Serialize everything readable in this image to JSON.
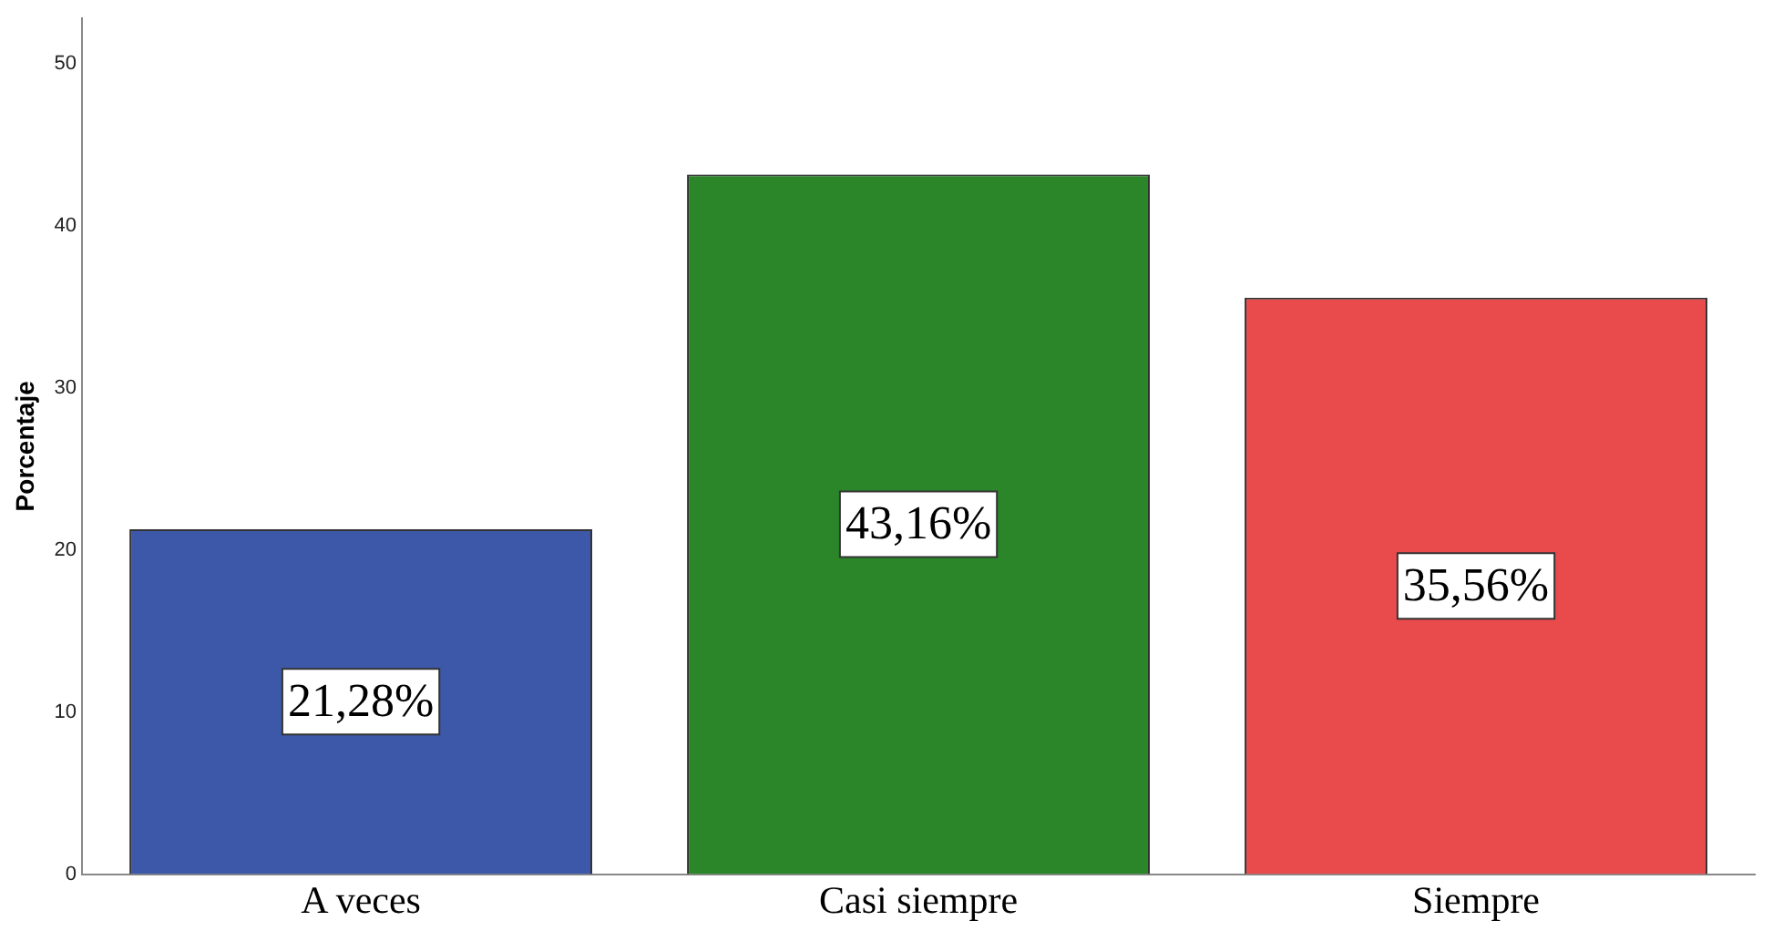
{
  "chart_data": {
    "type": "bar",
    "ylabel": "Porcentaje",
    "categories": [
      "A veces",
      "Casi siempre",
      "Siempre"
    ],
    "values": [
      21.28,
      43.16,
      35.56
    ],
    "colors": [
      "#3d58a8",
      "#2a8629",
      "#e94b4c"
    ],
    "value_labels": [
      "21,28%",
      "43,16%",
      "35,56%"
    ],
    "ylim": [
      0,
      52.8
    ],
    "yticks": [
      0,
      10,
      20,
      30,
      40,
      50
    ],
    "grid": false,
    "legend": false
  }
}
